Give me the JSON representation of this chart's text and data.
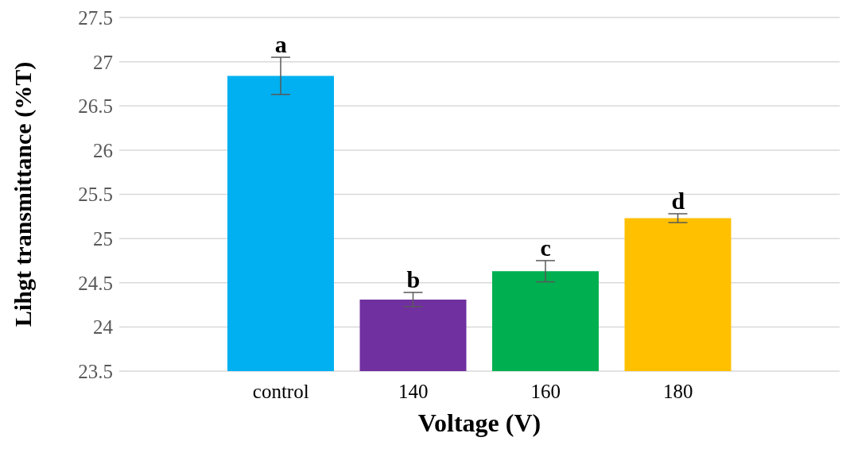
{
  "chart_data": {
    "type": "bar",
    "xlabel": "Voltage (V)",
    "ylabel": "Lihgt transmittance (%T)",
    "categories": [
      "control",
      "140",
      "160",
      "180"
    ],
    "values": [
      26.84,
      24.31,
      24.63,
      25.23
    ],
    "colors": [
      "#00b0f0",
      "#7030a0",
      "#00b050",
      "#ffc000"
    ],
    "errors": [
      0.21,
      0.08,
      0.12,
      0.05
    ],
    "ylim": [
      23.5,
      27.5
    ],
    "yticks": [
      23.5,
      24,
      24.5,
      25,
      25.5,
      26,
      26.5,
      27,
      27.5
    ],
    "grid": "y",
    "annotations": [
      {
        "text": "a",
        "x": "control",
        "y": 27.05
      },
      {
        "text": "b",
        "x": "140",
        "y": 24.39
      },
      {
        "text": "c",
        "x": "160",
        "y": 24.75
      },
      {
        "text": "d",
        "x": "180",
        "y": 25.28
      }
    ]
  }
}
